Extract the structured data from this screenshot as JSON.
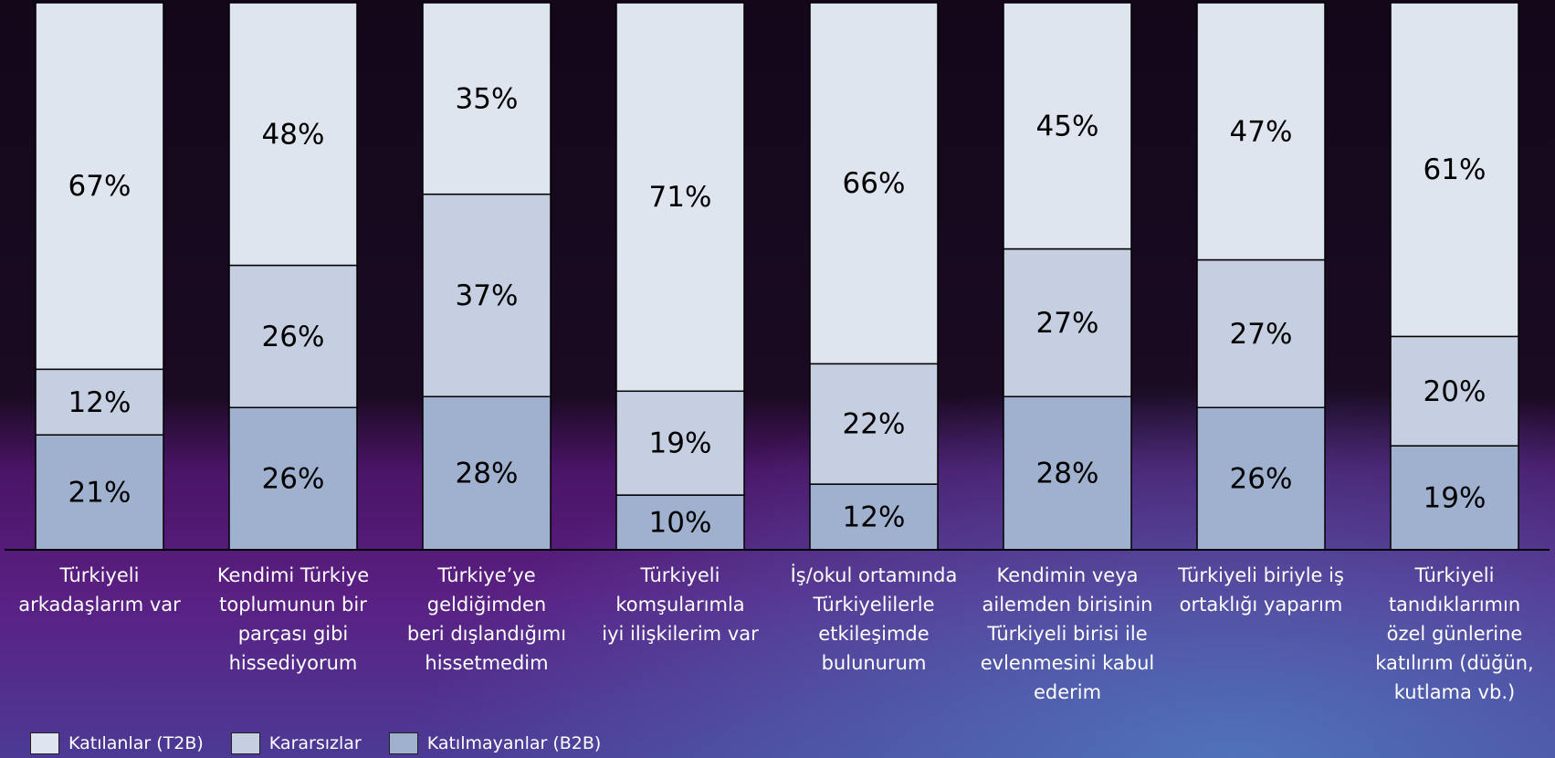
{
  "chart_data": {
    "type": "stacked_bar",
    "categories": [
      "Türkiyeli\narkadaşlarım var",
      "Kendimi Türkiye\ntoplumunun bir\nparçası gibi\nhissediyorum",
      "Türkiye’ye\ngeldiğimden\nberi dışlandığımı\nhissetmedim",
      "Türkiyeli\nkomşularımla\niyi ilişkilerim var",
      "İş/okul ortamında\nTürkiyelilerle\netkileşimde\nbulunurum",
      "Kendimin veya\nailemden birisinin\nTürkiyeli birisi ile\nevlenmesini kabul\nederim",
      "Türkiyeli biriyle iş\nortaklığı yaparım",
      "Türkiyeli\ntanıdıklarımın\nözel günlerine\nkatılırım (düğün,\nkutlama vb.)"
    ],
    "series": [
      {
        "name": "Katılanlar (T2B)",
        "color": "#dfe5ef",
        "values": [
          67,
          48,
          35,
          71,
          66,
          45,
          47,
          61
        ],
        "value_labels": [
          "67%",
          "48%",
          "35%",
          "71%",
          "66%",
          "45%",
          "47%",
          "61%"
        ]
      },
      {
        "name": "Kararsızlar",
        "color": "#c5cfe1",
        "values": [
          12,
          26,
          37,
          19,
          22,
          27,
          27,
          20
        ],
        "value_labels": [
          "12%",
          "26%",
          "37%",
          "19%",
          "22%",
          "27%",
          "27%",
          "20%"
        ]
      },
      {
        "name": "Katılmayanlar (B2B)",
        "color": "#9fb1cf",
        "values": [
          21,
          26,
          28,
          10,
          12,
          28,
          26,
          19
        ],
        "value_labels": [
          "21%",
          "26%",
          "28%",
          "10%",
          "12%",
          "28%",
          "26%",
          "19%"
        ]
      }
    ],
    "ylim": [
      0,
      100
    ]
  }
}
